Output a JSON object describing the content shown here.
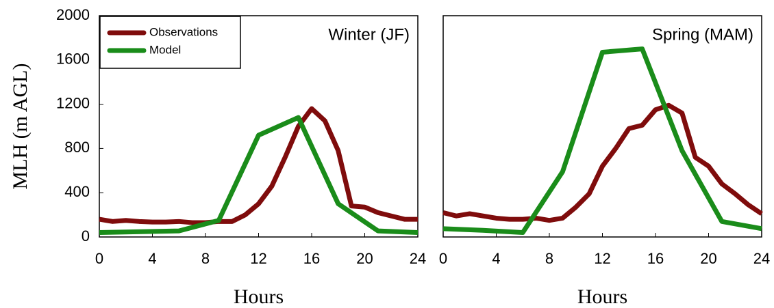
{
  "chart_data": [
    {
      "type": "line",
      "title": "Winter (JF)",
      "y_label": "MLH (m AGL)",
      "x_label": "Hours",
      "xlim": [
        0,
        24
      ],
      "xticks": [
        0,
        4,
        8,
        12,
        16,
        20,
        24
      ],
      "ylim": [
        0,
        2000
      ],
      "yticks": [
        0,
        400,
        800,
        1200,
        1600,
        2000
      ],
      "legend": "upper left",
      "series": [
        {
          "name": "Observations",
          "color": "#7f0c0c",
          "x": [
            0,
            1,
            2,
            3,
            4,
            5,
            6,
            7,
            8,
            9,
            10,
            11,
            12,
            13,
            14,
            15,
            16,
            17,
            18,
            19,
            20,
            21,
            22,
            23,
            24
          ],
          "values": [
            160,
            140,
            150,
            140,
            135,
            135,
            140,
            130,
            130,
            140,
            140,
            200,
            300,
            460,
            720,
            1000,
            1160,
            1050,
            780,
            280,
            270,
            220,
            190,
            160,
            160
          ]
        },
        {
          "name": "Model",
          "color": "#1a8c1a",
          "x": [
            0,
            6,
            9,
            12,
            15,
            18,
            21,
            24
          ],
          "values": [
            40,
            55,
            150,
            920,
            1080,
            300,
            55,
            40
          ]
        }
      ]
    },
    {
      "type": "line",
      "title": "Spring (MAM)",
      "x_label": "Hours",
      "xlim": [
        0,
        24
      ],
      "xticks": [
        0,
        4,
        8,
        12,
        16,
        20,
        24
      ],
      "ylim": [
        0,
        2000
      ],
      "series": [
        {
          "color": "#7f0c0c",
          "x": [
            0,
            1,
            2,
            3,
            4,
            5,
            6,
            7,
            8,
            9,
            10,
            11,
            12,
            13,
            14,
            15,
            16,
            17,
            18,
            19,
            20,
            21,
            22,
            23,
            24
          ],
          "values": [
            220,
            190,
            210,
            190,
            170,
            160,
            160,
            170,
            150,
            170,
            270,
            390,
            640,
            800,
            980,
            1010,
            1150,
            1190,
            1120,
            720,
            640,
            480,
            390,
            290,
            210
          ]
        },
        {
          "color": "#1a8c1a",
          "x": [
            0,
            3,
            6,
            9,
            12,
            15,
            18,
            21,
            24
          ],
          "values": [
            75,
            60,
            40,
            590,
            1670,
            1700,
            780,
            140,
            75
          ]
        }
      ]
    }
  ]
}
